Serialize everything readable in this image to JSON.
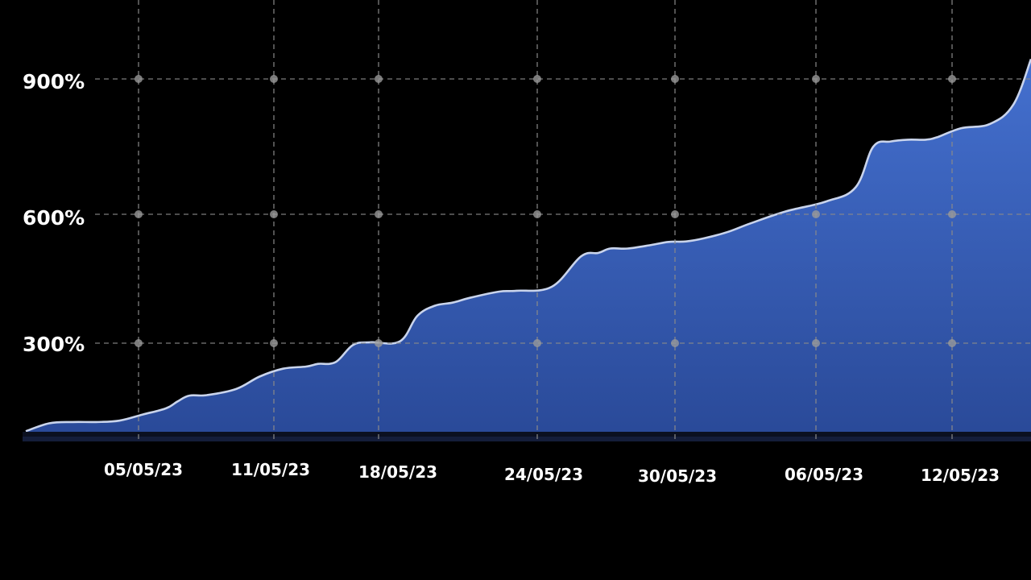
{
  "chart_data": {
    "type": "area",
    "title": "",
    "xlabel": "",
    "ylabel": "",
    "x_tick_labels": [
      "05/05/23",
      "11/05/23",
      "18/05/23",
      "24/05/23",
      "30/05/23",
      "06/05/23",
      "12/05/23"
    ],
    "y_tick_labels": [
      "300%",
      "600%",
      "900%"
    ],
    "y_ticks": [
      300,
      600,
      900
    ],
    "grid": true,
    "legend": "none",
    "colors": {
      "background": "#000000",
      "area_top": "#4470cf",
      "area_bottom": "#2a4a99",
      "line": "#c9d4ec",
      "grid": "#8a8a8a",
      "text": "#ffffff"
    },
    "series": [
      {
        "x": [
          0,
          4,
          8,
          12,
          16,
          20,
          24,
          26,
          28,
          31,
          36,
          40,
          44,
          48,
          50,
          53,
          56,
          59,
          64,
          67,
          70,
          73,
          76,
          81,
          84,
          90,
          95,
          98,
          100,
          103,
          107,
          110,
          113,
          116,
          120,
          124,
          130,
          137,
          142,
          145,
          148,
          151,
          154,
          156,
          160,
          165,
          169,
          172
        ],
        "values": [
          100,
          118,
          121,
          121,
          124,
          138,
          152,
          168,
          181,
          182,
          196,
          224,
          242,
          247,
          253,
          257,
          296,
          302,
          304,
          362,
          385,
          392,
          403,
          417,
          419,
          428,
          497,
          505,
          515,
          515,
          523,
          530,
          531,
          538,
          552,
          572,
          599,
          622,
          654,
          746,
          758,
          762,
          762,
          768,
          788,
          798,
          842,
          945
        ]
      }
    ]
  }
}
